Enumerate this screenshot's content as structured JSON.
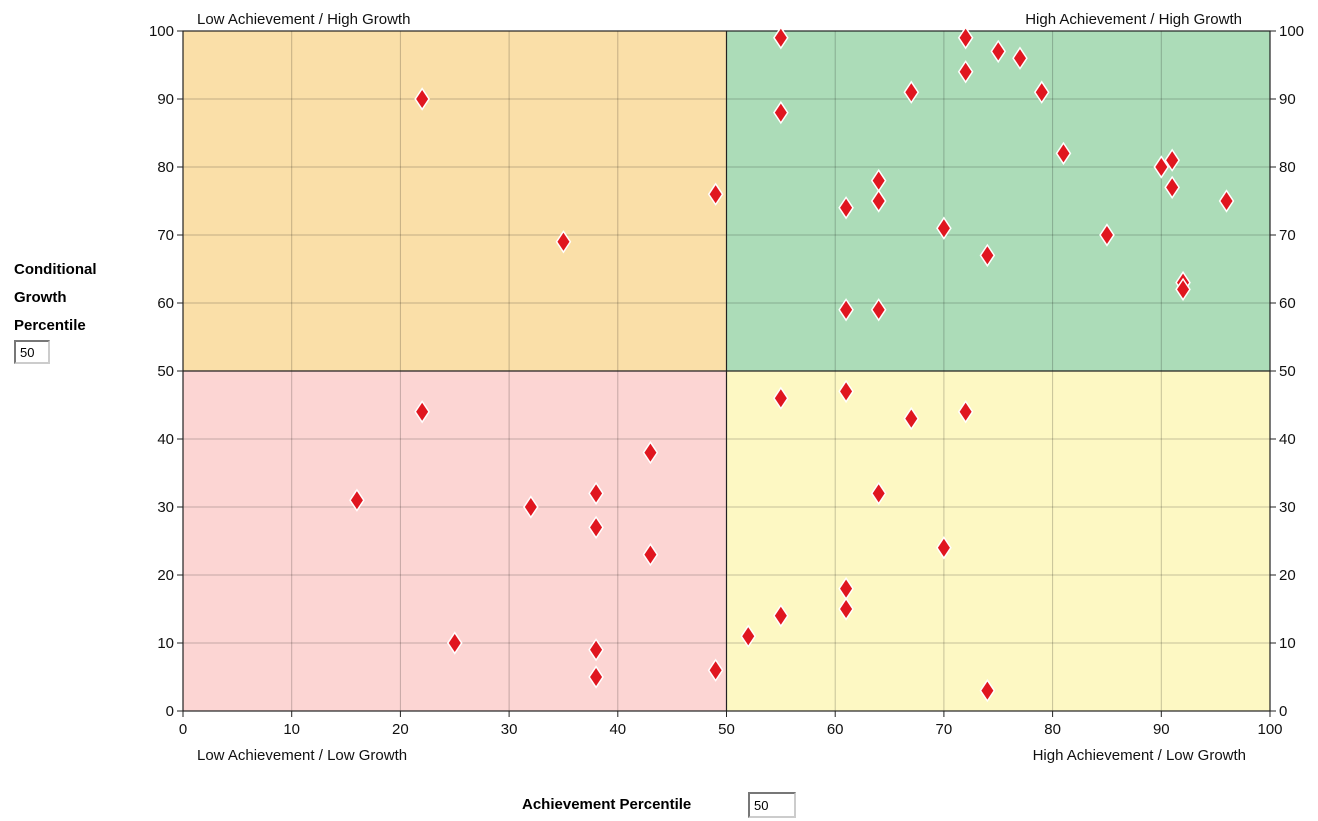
{
  "chart_data": {
    "type": "scatter",
    "xlabel": "Achievement Percentile",
    "ylabel": [
      "Conditional",
      "Growth",
      "Percentile"
    ],
    "xlim": [
      0,
      100
    ],
    "ylim": [
      0,
      100
    ],
    "x_ticks": [
      0,
      10,
      20,
      30,
      40,
      50,
      60,
      70,
      80,
      90,
      100
    ],
    "y_ticks": [
      0,
      10,
      20,
      30,
      40,
      50,
      60,
      70,
      80,
      90,
      100
    ],
    "grid": true,
    "divider_x": 50,
    "divider_y": 50,
    "quadrants": {
      "top_left": {
        "label": "Low Achievement / High Growth",
        "color": "#fadfa8"
      },
      "top_right": {
        "label": "High Achievement / High Growth",
        "color": "#acdcb8"
      },
      "bottom_left": {
        "label": "Low Achievement / Low Growth",
        "color": "#fcd5d3"
      },
      "bottom_right": {
        "label": "High Achievement / Low Growth",
        "color": "#fdf8c3"
      }
    },
    "marker": {
      "shape": "diamond",
      "fill": "#e0161f",
      "stroke": "#ffffff"
    },
    "points": [
      {
        "x": 55,
        "y": 99
      },
      {
        "x": 72,
        "y": 99
      },
      {
        "x": 75,
        "y": 97
      },
      {
        "x": 77,
        "y": 96
      },
      {
        "x": 72,
        "y": 94
      },
      {
        "x": 79,
        "y": 91
      },
      {
        "x": 67,
        "y": 91
      },
      {
        "x": 55,
        "y": 88
      },
      {
        "x": 22,
        "y": 90
      },
      {
        "x": 81,
        "y": 82
      },
      {
        "x": 90,
        "y": 80
      },
      {
        "x": 91,
        "y": 81
      },
      {
        "x": 64,
        "y": 78
      },
      {
        "x": 91,
        "y": 77
      },
      {
        "x": 49,
        "y": 76
      },
      {
        "x": 61,
        "y": 74
      },
      {
        "x": 64,
        "y": 75
      },
      {
        "x": 96,
        "y": 75
      },
      {
        "x": 70,
        "y": 71
      },
      {
        "x": 85,
        "y": 70
      },
      {
        "x": 35,
        "y": 69
      },
      {
        "x": 74,
        "y": 67
      },
      {
        "x": 92,
        "y": 63
      },
      {
        "x": 92,
        "y": 62
      },
      {
        "x": 61,
        "y": 59
      },
      {
        "x": 64,
        "y": 59
      },
      {
        "x": 55,
        "y": 46
      },
      {
        "x": 61,
        "y": 47
      },
      {
        "x": 67,
        "y": 43
      },
      {
        "x": 72,
        "y": 44
      },
      {
        "x": 22,
        "y": 44
      },
      {
        "x": 43,
        "y": 38
      },
      {
        "x": 64,
        "y": 32
      },
      {
        "x": 16,
        "y": 31
      },
      {
        "x": 32,
        "y": 30
      },
      {
        "x": 38,
        "y": 32
      },
      {
        "x": 38,
        "y": 27
      },
      {
        "x": 70,
        "y": 24
      },
      {
        "x": 43,
        "y": 23
      },
      {
        "x": 61,
        "y": 18
      },
      {
        "x": 61,
        "y": 15
      },
      {
        "x": 55,
        "y": 14
      },
      {
        "x": 52,
        "y": 11
      },
      {
        "x": 25,
        "y": 10
      },
      {
        "x": 38,
        "y": 9
      },
      {
        "x": 38,
        "y": 5
      },
      {
        "x": 49,
        "y": 6
      },
      {
        "x": 74,
        "y": 3
      }
    ]
  },
  "inputs": {
    "growth_percentile": "50",
    "achievement_percentile": "50"
  }
}
